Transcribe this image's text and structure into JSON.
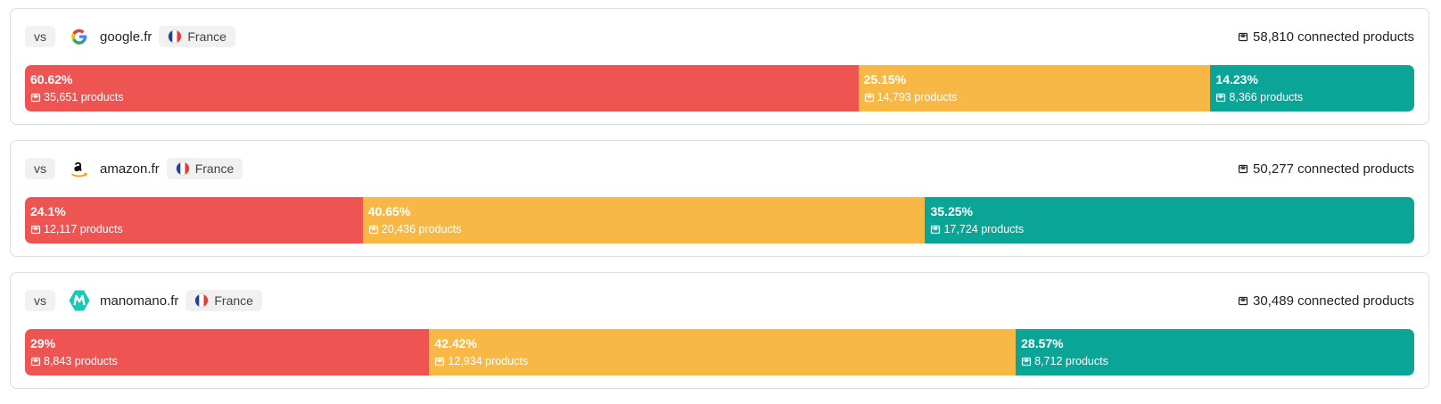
{
  "colors": [
    "#ee5452",
    "#f8b846",
    "#0ba598"
  ],
  "cards": [
    {
      "vs": "vs",
      "site": "google.fr",
      "country": "France",
      "connected": "58,810 connected products",
      "segments": [
        {
          "value": 60.62,
          "label": "60.62%",
          "products": "35,651 products"
        },
        {
          "value": 25.15,
          "label": "25.15%",
          "products": "14,793 products"
        },
        {
          "value": 14.23,
          "label": "14.23%",
          "products": "8,366 products"
        }
      ]
    },
    {
      "vs": "vs",
      "site": "amazon.fr",
      "country": "France",
      "connected": "50,277 connected products",
      "segments": [
        {
          "value": 24.1,
          "label": "24.1%",
          "products": "12,117 products"
        },
        {
          "value": 40.65,
          "label": "40.65%",
          "products": "20,436 products"
        },
        {
          "value": 35.25,
          "label": "35.25%",
          "products": "17,724 products"
        }
      ]
    },
    {
      "vs": "vs",
      "site": "manomano.fr",
      "country": "France",
      "connected": "30,489 connected products",
      "segments": [
        {
          "value": 29,
          "label": "29%",
          "products": "8,843 products"
        },
        {
          "value": 42.42,
          "label": "42.42%",
          "products": "12,934 products"
        },
        {
          "value": 28.57,
          "label": "28.57%",
          "products": "8,712 products"
        }
      ]
    }
  ]
}
